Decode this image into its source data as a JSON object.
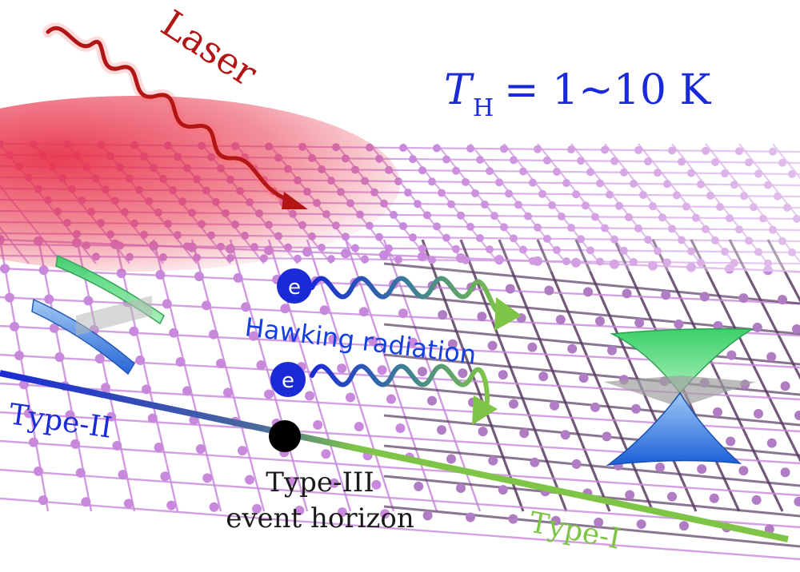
{
  "laser": {
    "label": "Laser",
    "color": "#b31414"
  },
  "temperature": {
    "symbol": "T",
    "subscript": "H",
    "relation": "= 1~10 K",
    "color": "#1a2ad6"
  },
  "radiation": {
    "label": "Hawking radiation",
    "electron_symbol": "e",
    "color": "#1540e0"
  },
  "horizon_line": {
    "type_ii": "Type-II",
    "type_iii_line1": "Type-III",
    "type_iii_line2": "event horizon",
    "type_i": "Type-I",
    "type_ii_color": "#1a2ad6",
    "type_i_color": "#7ec447"
  },
  "colors": {
    "lattice": "#c888dc",
    "lattice_dark": "#5a3c62",
    "laser_glow": "#e8334a",
    "cone_green": "#43d66c",
    "cone_blue": "#2a6fe0"
  }
}
